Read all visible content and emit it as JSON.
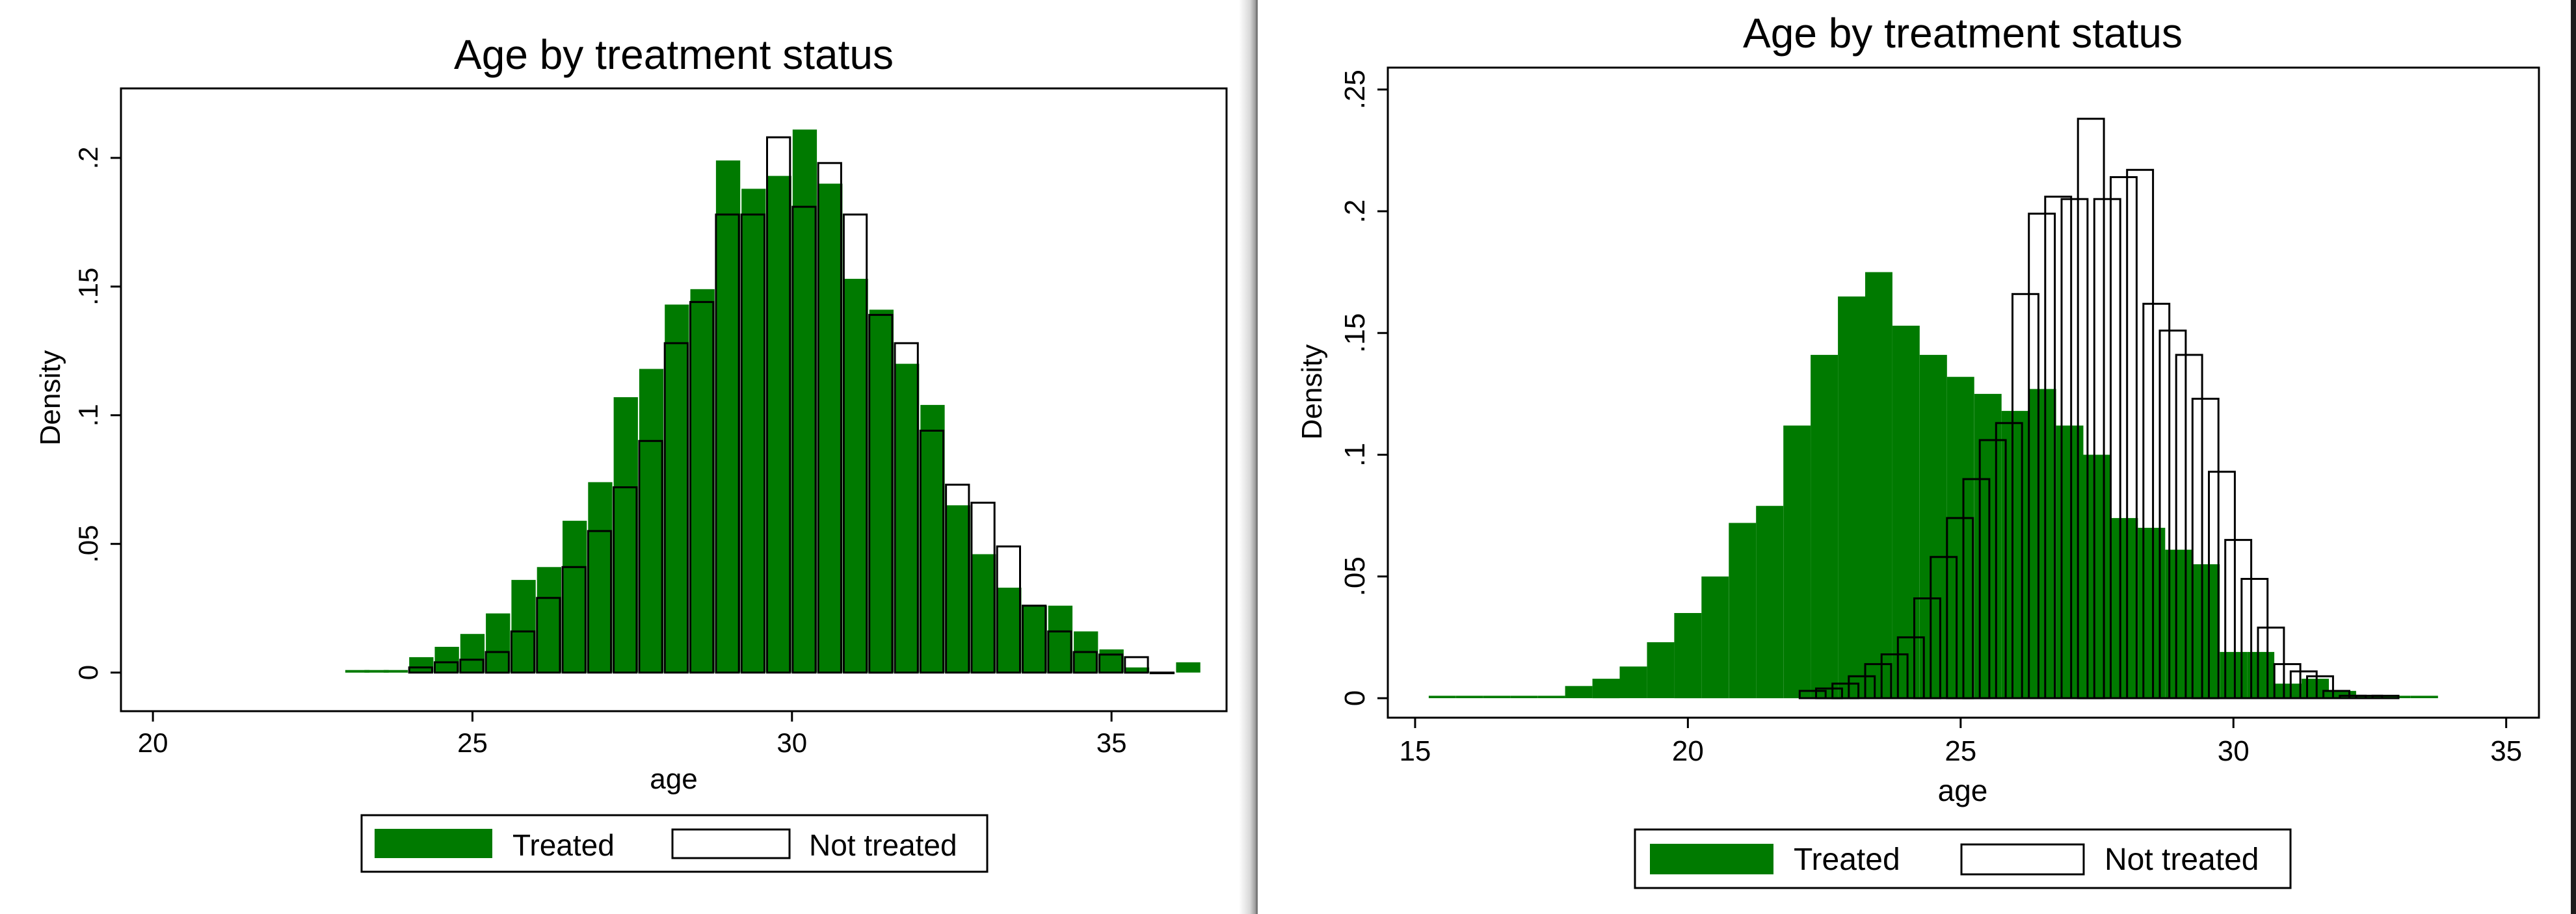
{
  "chart_data": [
    {
      "type": "bar",
      "title": "Age by treatment status",
      "xlabel": "age",
      "ylabel": "Density",
      "xlim": [
        19.5,
        36.8
      ],
      "ylim": [
        -0.015,
        0.227
      ],
      "xticks": [
        20,
        25,
        30,
        35
      ],
      "yticks": [
        0,
        0.05,
        0.1,
        0.15,
        0.2
      ],
      "xtick_labels": [
        "20",
        "25",
        "30",
        "35"
      ],
      "ytick_labels": [
        "0",
        ".05",
        ".1",
        ".15",
        ".2"
      ],
      "bin_width": 0.38,
      "grid": false,
      "legend_position": "bottom",
      "series": [
        {
          "name": "Treated",
          "style": "filled",
          "color": "#007a00",
          "x": [
            23.2,
            23.5,
            23.8,
            24.2,
            24.6,
            25.0,
            25.4,
            25.8,
            26.2,
            26.6,
            27.0,
            27.4,
            27.8,
            28.2,
            28.6,
            29.0,
            29.4,
            29.8,
            30.2,
            30.6,
            31.0,
            31.4,
            31.8,
            32.2,
            32.6,
            33.0,
            33.4,
            33.8,
            34.2,
            34.6,
            35.0,
            35.4,
            35.8,
            36.2
          ],
          "values": [
            0.001,
            0.001,
            0.001,
            0.006,
            0.01,
            0.015,
            0.023,
            0.036,
            0.041,
            0.059,
            0.074,
            0.107,
            0.118,
            0.143,
            0.149,
            0.199,
            0.188,
            0.193,
            0.211,
            0.19,
            0.153,
            0.141,
            0.12,
            0.104,
            0.065,
            0.046,
            0.033,
            0.026,
            0.026,
            0.016,
            0.009,
            0.002,
            0,
            0.004
          ]
        },
        {
          "name": "Not treated",
          "style": "outline",
          "color": "#000000",
          "x": [
            24.2,
            24.6,
            25.0,
            25.4,
            25.8,
            26.2,
            26.6,
            27.0,
            27.4,
            27.8,
            28.2,
            28.6,
            29.0,
            29.4,
            29.8,
            30.2,
            30.6,
            31.0,
            31.4,
            31.8,
            32.2,
            32.6,
            33.0,
            33.4,
            33.8,
            34.2,
            34.6,
            35.0,
            35.4,
            35.8
          ],
          "values": [
            0.002,
            0.004,
            0.005,
            0.008,
            0.016,
            0.029,
            0.041,
            0.055,
            0.072,
            0.09,
            0.128,
            0.144,
            0.178,
            0.178,
            0.208,
            0.181,
            0.198,
            0.178,
            0.139,
            0.128,
            0.094,
            0.073,
            0.066,
            0.049,
            0.026,
            0.016,
            0.008,
            0.007,
            0.006,
            0
          ]
        }
      ]
    },
    {
      "type": "bar",
      "title": "Age by treatment status",
      "xlabel": "age",
      "ylabel": "Density",
      "xlim": [
        14.5,
        35.6
      ],
      "ylim": [
        -0.008,
        0.259
      ],
      "xticks": [
        15,
        20,
        25,
        30,
        35
      ],
      "yticks": [
        0,
        0.05,
        0.1,
        0.15,
        0.2,
        0.25
      ],
      "xtick_labels": [
        "15",
        "20",
        "25",
        "30",
        "35"
      ],
      "ytick_labels": [
        "0",
        ".05",
        ".1",
        ".15",
        ".2",
        ".25"
      ],
      "bin_width": 0.5,
      "grid": false,
      "legend_position": "bottom",
      "series": [
        {
          "name": "Treated",
          "style": "filled",
          "color": "#007a00",
          "x": [
            15.5,
            16.0,
            16.5,
            17.0,
            17.5,
            18.0,
            18.5,
            19.0,
            19.5,
            20.0,
            20.5,
            21.0,
            21.5,
            22.0,
            22.5,
            23.0,
            23.5,
            24.0,
            24.5,
            25.0,
            25.5,
            26.0,
            26.5,
            27.0,
            27.5,
            28.0,
            28.5,
            29.0,
            29.5,
            30.0,
            30.5,
            31.0,
            31.5,
            32.0,
            32.5,
            33.0,
            33.5
          ],
          "values": [
            0.001,
            0.001,
            0.001,
            0.001,
            0.001,
            0.005,
            0.008,
            0.013,
            0.023,
            0.035,
            0.05,
            0.072,
            0.079,
            0.112,
            0.141,
            0.165,
            0.175,
            0.153,
            0.141,
            0.132,
            0.125,
            0.118,
            0.127,
            0.112,
            0.1,
            0.074,
            0.07,
            0.061,
            0.055,
            0.019,
            0.019,
            0.006,
            0.008,
            0.003,
            0.001,
            0.001,
            0.001
          ]
        },
        {
          "name": "Not treated",
          "style": "outline",
          "color": "#000000",
          "x": [
            22.3,
            22.6,
            22.9,
            23.2,
            23.5,
            23.8,
            24.1,
            24.4,
            24.7,
            25.0,
            25.3,
            25.6,
            25.9,
            26.2,
            26.5,
            26.8,
            27.1,
            27.4,
            27.7,
            28.0,
            28.3,
            28.6,
            28.9,
            29.2,
            29.5,
            29.8,
            30.1,
            30.4,
            30.7,
            31.0,
            31.3,
            31.6,
            31.9,
            32.2,
            32.5,
            32.8
          ],
          "values": [
            0.003,
            0.004,
            0.006,
            0.009,
            0.014,
            0.018,
            0.025,
            0.041,
            0.058,
            0.074,
            0.09,
            0.106,
            0.113,
            0.166,
            0.199,
            0.206,
            0.205,
            0.238,
            0.205,
            0.214,
            0.217,
            0.162,
            0.151,
            0.141,
            0.123,
            0.093,
            0.065,
            0.049,
            0.029,
            0.014,
            0.011,
            0.009,
            0.003,
            0.001,
            0.001,
            0.001
          ]
        }
      ]
    }
  ]
}
